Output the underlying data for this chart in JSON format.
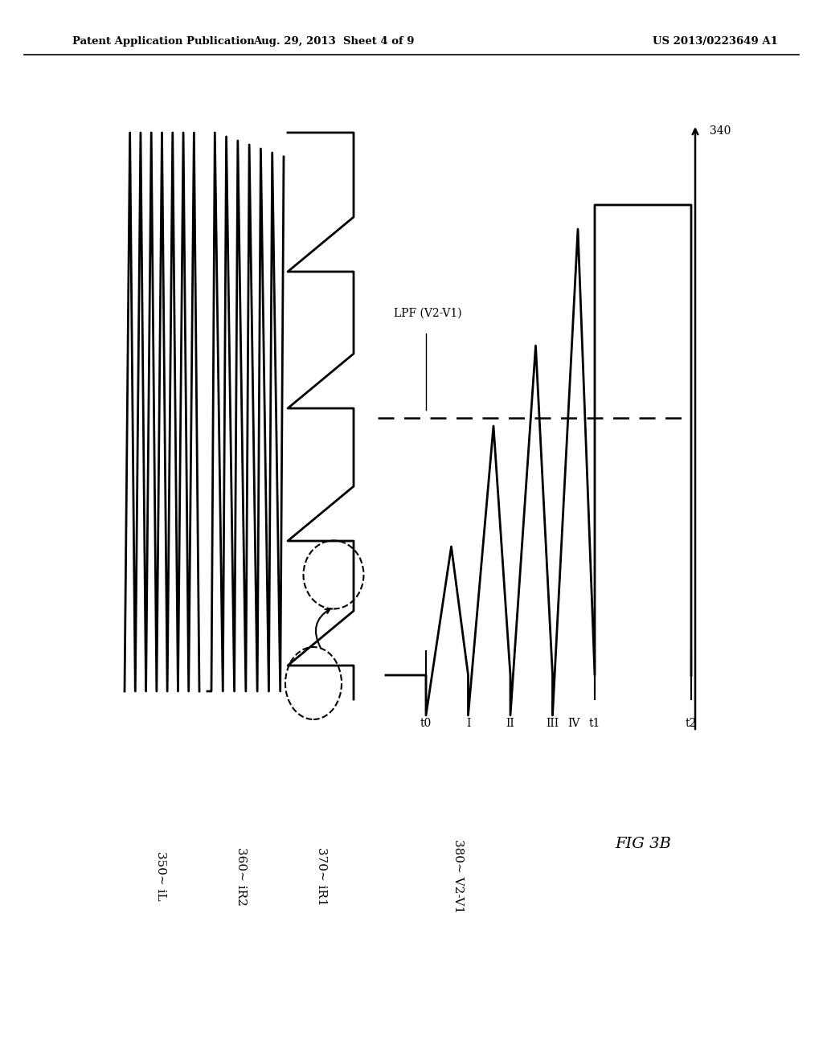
{
  "title_left": "Patent Application Publication",
  "title_center": "Aug. 29, 2013  Sheet 4 of 9",
  "title_right": "US 2013/0223649 A1",
  "fig_label": "FIG 3B",
  "label_350": "350∼ iL",
  "label_360": "360∼ iR2",
  "label_370": "370∼ iR1",
  "label_380": "380∼ V2-V1",
  "label_340": "340",
  "label_lpf": "LPF (V2-V1)",
  "bg_color": "#ffffff",
  "line_color": "#000000"
}
